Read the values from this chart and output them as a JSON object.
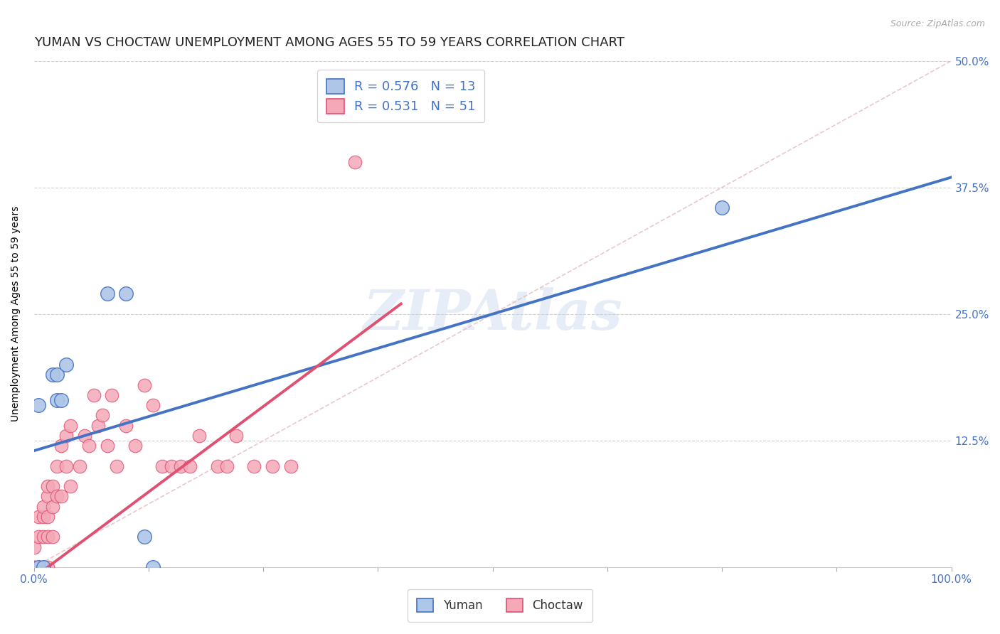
{
  "title": "YUMAN VS CHOCTAW UNEMPLOYMENT AMONG AGES 55 TO 59 YEARS CORRELATION CHART",
  "source_text": "Source: ZipAtlas.com",
  "ylabel": "Unemployment Among Ages 55 to 59 years",
  "watermark": "ZIPAtlas",
  "xlim": [
    0,
    1.0
  ],
  "ylim": [
    0,
    0.5
  ],
  "xticks": [
    0.0,
    0.125,
    0.25,
    0.375,
    0.5,
    0.625,
    0.75,
    0.875,
    1.0
  ],
  "xticklabels": [
    "0.0%",
    "",
    "",
    "",
    "",
    "",
    "",
    "",
    "100.0%"
  ],
  "yticks": [
    0.0,
    0.125,
    0.25,
    0.375,
    0.5
  ],
  "yticklabels": [
    "",
    "12.5%",
    "25.0%",
    "37.5%",
    "50.0%"
  ],
  "yuman_color": "#aec6e8",
  "choctaw_color": "#f4a8b8",
  "yuman_line_color": "#4472c4",
  "choctaw_line_color": "#e05070",
  "ref_line_color": "#e8c0c8",
  "R_yuman": 0.576,
  "N_yuman": 13,
  "R_choctaw": 0.531,
  "N_choctaw": 51,
  "yuman_x": [
    0.005,
    0.01,
    0.02,
    0.025,
    0.025,
    0.03,
    0.035,
    0.08,
    0.1,
    0.12,
    0.13,
    0.75,
    0.005
  ],
  "yuman_y": [
    0.0,
    0.0,
    0.19,
    0.19,
    0.165,
    0.165,
    0.2,
    0.27,
    0.27,
    0.03,
    0.0,
    0.355,
    0.16
  ],
  "choctaw_x": [
    0.0,
    0.0,
    0.0,
    0.005,
    0.005,
    0.005,
    0.01,
    0.01,
    0.01,
    0.01,
    0.015,
    0.015,
    0.015,
    0.015,
    0.015,
    0.02,
    0.02,
    0.02,
    0.025,
    0.025,
    0.03,
    0.03,
    0.035,
    0.035,
    0.04,
    0.04,
    0.05,
    0.055,
    0.06,
    0.065,
    0.07,
    0.075,
    0.08,
    0.085,
    0.09,
    0.1,
    0.11,
    0.12,
    0.13,
    0.14,
    0.15,
    0.16,
    0.17,
    0.18,
    0.2,
    0.21,
    0.22,
    0.24,
    0.26,
    0.28,
    0.35
  ],
  "choctaw_y": [
    0.0,
    0.0,
    0.02,
    0.0,
    0.03,
    0.05,
    0.0,
    0.03,
    0.05,
    0.06,
    0.0,
    0.03,
    0.05,
    0.07,
    0.08,
    0.03,
    0.06,
    0.08,
    0.07,
    0.1,
    0.07,
    0.12,
    0.1,
    0.13,
    0.08,
    0.14,
    0.1,
    0.13,
    0.12,
    0.17,
    0.14,
    0.15,
    0.12,
    0.17,
    0.1,
    0.14,
    0.12,
    0.18,
    0.16,
    0.1,
    0.1,
    0.1,
    0.1,
    0.13,
    0.1,
    0.1,
    0.13,
    0.1,
    0.1,
    0.1,
    0.4
  ],
  "title_fontsize": 13,
  "axis_label_fontsize": 10,
  "tick_fontsize": 11,
  "legend_fontsize": 13
}
